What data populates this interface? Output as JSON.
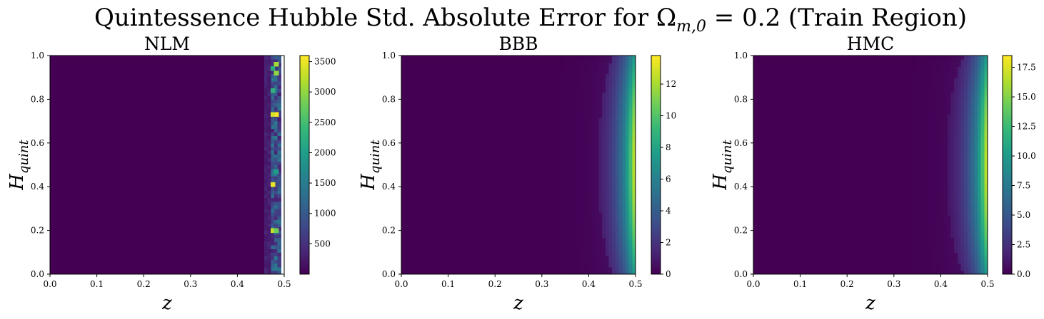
{
  "figure": {
    "title_main": "Quintessence Hubble Std. Absolute Error for Ω",
    "title_sub": "m,0",
    "title_rest": " = 0.2 (Train Region)"
  },
  "chart_data": [
    {
      "type": "heatmap",
      "title": "NLM",
      "xlabel": "z",
      "ylabel_main": "H",
      "ylabel_sub": "quint",
      "xlim": [
        0.0,
        0.5
      ],
      "ylim": [
        0.0,
        1.0
      ],
      "xticks": [
        "0.0",
        "0.1",
        "0.2",
        "0.3",
        "0.4",
        "0.5"
      ],
      "yticks": [
        "0.0",
        "0.2",
        "0.4",
        "0.6",
        "0.8",
        "1.0"
      ],
      "colormap": "viridis",
      "colorbar_range": [
        0,
        3600
      ],
      "colorbar_ticks": [
        500,
        1000,
        1500,
        2000,
        2500,
        3000,
        3500
      ],
      "colorbar_labels": [
        "500",
        "1000",
        "1500",
        "2000",
        "2500",
        "3000",
        "3500"
      ],
      "grid": false,
      "description_pattern": "near-zero everywhere except noisy high values in columns z≈0.47–0.49; blank beyond z≈0.49",
      "hotspots": [
        {
          "z": 0.483,
          "h": 0.73,
          "value": 3600
        },
        {
          "z": 0.476,
          "h": 0.73,
          "value": 3400
        },
        {
          "z": 0.476,
          "h": 0.41,
          "value": 3500
        },
        {
          "z": 0.476,
          "h": 0.2,
          "value": 3300
        },
        {
          "z": 0.483,
          "h": 0.96,
          "value": 3100
        },
        {
          "z": 0.476,
          "h": 0.94,
          "value": 2200
        },
        {
          "z": 0.483,
          "h": 0.92,
          "value": 3000
        },
        {
          "z": 0.483,
          "h": 0.2,
          "value": 2800
        },
        {
          "z": 0.476,
          "h": 0.84,
          "value": 2300
        },
        {
          "z": 0.483,
          "h": 0.47,
          "value": 2000
        }
      ]
    },
    {
      "type": "heatmap",
      "title": "BBB",
      "xlabel": "z",
      "ylabel_main": "H",
      "ylabel_sub": "quint",
      "xlim": [
        0.0,
        0.5
      ],
      "ylim": [
        0.0,
        1.0
      ],
      "xticks": [
        "0.0",
        "0.1",
        "0.2",
        "0.3",
        "0.4",
        "0.5"
      ],
      "yticks": [
        "0.0",
        "0.2",
        "0.4",
        "0.6",
        "0.8",
        "1.0"
      ],
      "colormap": "viridis",
      "colorbar_range": [
        0,
        13.8
      ],
      "colorbar_ticks": [
        0,
        2,
        4,
        6,
        8,
        10,
        12
      ],
      "colorbar_labels": [
        "0",
        "2",
        "4",
        "6",
        "8",
        "10",
        "12"
      ],
      "grid": false,
      "peak": {
        "z": 0.5,
        "h": 0.5,
        "value": 13.8
      },
      "description_pattern": "error grows with z, maximal near z=0.5 and H≈0.5"
    },
    {
      "type": "heatmap",
      "title": "HMC",
      "xlabel": "z",
      "ylabel_main": "H",
      "ylabel_sub": "quint",
      "xlim": [
        0.0,
        0.5
      ],
      "ylim": [
        0.0,
        1.0
      ],
      "xticks": [
        "0.0",
        "0.1",
        "0.2",
        "0.3",
        "0.4",
        "0.5"
      ],
      "yticks": [
        "0.0",
        "0.2",
        "0.4",
        "0.6",
        "0.8",
        "1.0"
      ],
      "colormap": "viridis",
      "colorbar_range": [
        0,
        18.5
      ],
      "colorbar_ticks": [
        0,
        2.5,
        5,
        7.5,
        10,
        12.5,
        15,
        17.5
      ],
      "colorbar_labels": [
        "0.0",
        "2.5",
        "5.0",
        "7.5",
        "10.0",
        "12.5",
        "15.0",
        "17.5"
      ],
      "grid": false,
      "peak": {
        "z": 0.5,
        "h": 0.5,
        "value": 18.5
      },
      "description_pattern": "error grows with z, maximal near z=0.5 and H≈0.5"
    }
  ]
}
